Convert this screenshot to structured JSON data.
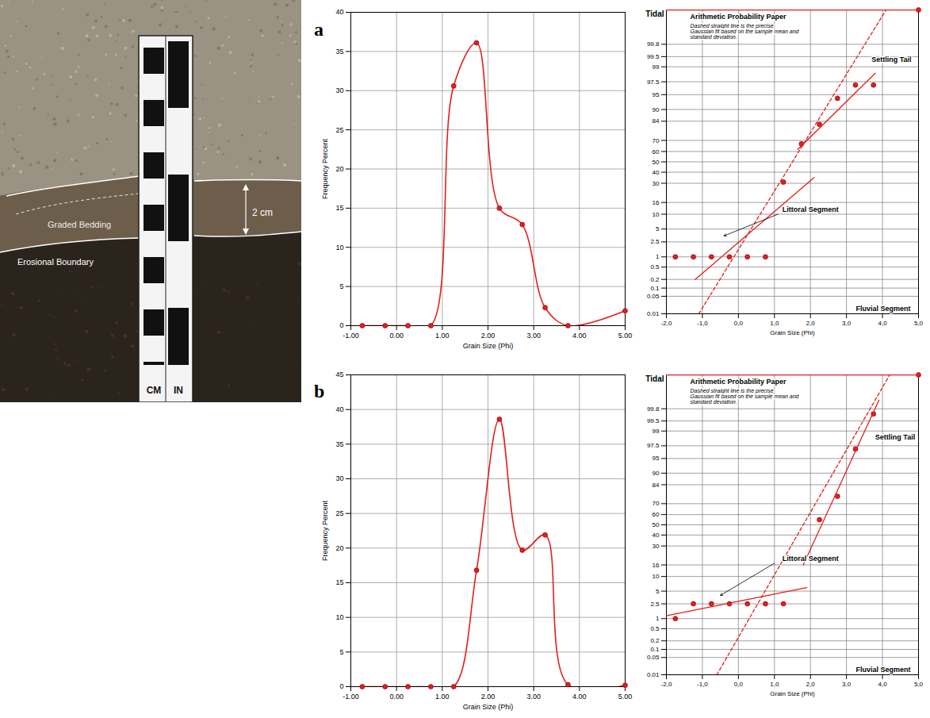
{
  "photo": {
    "scale_labels": [
      "CM",
      "IN"
    ],
    "annotations": {
      "graded": "Graded Bedding",
      "erosional": "Erosional Boundary",
      "thickness": "2 cm"
    }
  },
  "panel_labels": [
    "a",
    "b"
  ],
  "chart_data": [
    {
      "type": "line",
      "xlabel": "Grain Size (Phi)",
      "ylabel": "Frequency Percent",
      "x": [
        -0.75,
        -0.25,
        0.25,
        0.75,
        1.25,
        1.75,
        2.25,
        2.75,
        3.25,
        3.75,
        5.0
      ],
      "values": [
        0,
        0,
        0,
        0,
        30.6,
        36.1,
        15.0,
        12.9,
        2.3,
        0,
        1.9
      ],
      "color": "#e41e1e",
      "marker": "circle",
      "xlim": [
        -1,
        5
      ],
      "xticks": [
        {
          "value": -1,
          "label": "-1.00"
        },
        {
          "value": 0,
          "label": "0.00"
        },
        {
          "value": 1,
          "label": "1.00"
        },
        {
          "value": 2,
          "label": "2.00"
        },
        {
          "value": 3,
          "label": "3.00"
        },
        {
          "value": 4,
          "label": "4.00"
        },
        {
          "value": 5,
          "label": "5.00"
        }
      ],
      "ylim": [
        0,
        40
      ],
      "yticks": [
        0,
        5,
        10,
        15,
        20,
        25,
        30,
        35,
        40
      ],
      "grid": true
    },
    {
      "type": "probability",
      "xlabel": "Grain Size (Phi)",
      "annotations": {
        "paper_title": "Arithmetic Probability Paper",
        "note": "Dashed straight line is the precise Gaussian fit based on the sample mean and standard deviation.",
        "settling": "Settling Tail",
        "littoral": "Littoral Segment",
        "fluvial": "Fluvial Segment",
        "tidal": "Tidal"
      },
      "xlim": [
        -2,
        5
      ],
      "xticks": [
        {
          "value": -2,
          "label": "-2,0"
        },
        {
          "value": -1,
          "label": "-1,0"
        },
        {
          "value": 0,
          "label": "0,0"
        },
        {
          "value": 1,
          "label": "1,0"
        },
        {
          "value": 2,
          "label": "2,0"
        },
        {
          "value": 3,
          "label": "3,0"
        },
        {
          "value": 4,
          "label": "4,0"
        },
        {
          "value": 5,
          "label": "5,0"
        }
      ],
      "ylim": [
        0.01,
        99.99
      ],
      "yticks": [
        0.01,
        0.05,
        0.1,
        0.2,
        0.5,
        1,
        2.5,
        5,
        10,
        16,
        30,
        40,
        50,
        60,
        70,
        84,
        90,
        95,
        97.5,
        99,
        99.5,
        99.8
      ],
      "grid": true,
      "series": [
        {
          "type": "scatter",
          "marker": "circle",
          "color": "#e41e1e",
          "x": [
            -1.75,
            -1.25,
            -0.75,
            -0.25,
            0.25,
            0.75,
            1.25,
            1.75,
            2.25,
            2.75,
            3.25,
            3.75,
            5.0
          ],
          "values": [
            1,
            1,
            1,
            1,
            1,
            1,
            31,
            67,
            82,
            94,
            97,
            97,
            99.99
          ]
        },
        {
          "type": "line",
          "line_style": "solid",
          "color": "#e41e1e",
          "x": [
            -1.2,
            2.1
          ],
          "values": [
            0.2,
            35
          ]
        },
        {
          "type": "line",
          "line_style": "solid",
          "color": "#e41e1e",
          "x": [
            1.65,
            3.8
          ],
          "values": [
            62,
            98.5
          ]
        },
        {
          "type": "line",
          "line_style": "dashed",
          "color": "#e41e1e",
          "x": [
            -1.1,
            4.1
          ],
          "values": [
            0.01,
            99.99
          ]
        },
        {
          "type": "line",
          "line_style": "solid",
          "color": "#e41e1e",
          "x": [
            -2,
            5
          ],
          "values": [
            99.99,
            99.99
          ]
        }
      ]
    },
    {
      "type": "line",
      "xlabel": "Grain Size (Phi)",
      "ylabel": "Frequency Percent",
      "x": [
        -0.75,
        -0.25,
        0.25,
        0.75,
        1.25,
        1.75,
        2.25,
        2.75,
        3.25,
        3.75,
        5.0
      ],
      "values": [
        0,
        0,
        0,
        0,
        0,
        16.8,
        38.6,
        19.7,
        21.9,
        0.3,
        0.2
      ],
      "color": "#e41e1e",
      "marker": "circle",
      "xlim": [
        -1,
        5
      ],
      "xticks": [
        {
          "value": -1,
          "label": "-1.00"
        },
        {
          "value": 0,
          "label": "0.00"
        },
        {
          "value": 1,
          "label": "1.00"
        },
        {
          "value": 2,
          "label": "2.00"
        },
        {
          "value": 3,
          "label": "3.00"
        },
        {
          "value": 4,
          "label": "4.00"
        },
        {
          "value": 5,
          "label": "5.00"
        }
      ],
      "ylim": [
        0,
        45
      ],
      "yticks": [
        0,
        5,
        10,
        15,
        20,
        25,
        30,
        35,
        40,
        45
      ],
      "grid": true
    },
    {
      "type": "probability",
      "xlabel": "Grain Size (Phi)",
      "annotations": {
        "paper_title": "Arithmetic Probability Paper",
        "note": "Dashed straight line is the precise Gaussian fit based on the sample mean and standard deviation.",
        "settling": "Settling Tail",
        "littoral": "Littoral Segment",
        "fluvial": "Fluvial Segment",
        "tidal": "Tidal"
      },
      "xlim": [
        -2,
        5
      ],
      "xticks": [
        {
          "value": -2,
          "label": "-2,0"
        },
        {
          "value": -1,
          "label": "-1,0"
        },
        {
          "value": 0,
          "label": "0,0"
        },
        {
          "value": 1,
          "label": "1,0"
        },
        {
          "value": 2,
          "label": "2,0"
        },
        {
          "value": 3,
          "label": "3,0"
        },
        {
          "value": 4,
          "label": "4,0"
        },
        {
          "value": 5,
          "label": "5,0"
        }
      ],
      "ylim": [
        0.01,
        99.99
      ],
      "yticks": [
        0.01,
        0.05,
        0.1,
        0.2,
        0.5,
        1,
        2.5,
        5,
        10,
        16,
        30,
        40,
        50,
        60,
        70,
        84,
        90,
        95,
        97.5,
        99,
        99.5,
        99.8
      ],
      "grid": true,
      "series": [
        {
          "type": "scatter",
          "marker": "circle",
          "color": "#e41e1e",
          "x": [
            -1.75,
            -1.25,
            -0.75,
            -0.25,
            0.25,
            0.75,
            1.25,
            2.25,
            2.75,
            3.25,
            3.75,
            5.0
          ],
          "values": [
            1,
            2.5,
            2.5,
            2.5,
            2.5,
            2.5,
            2.5,
            55,
            76,
            97,
            99.7,
            99.99
          ]
        },
        {
          "type": "line",
          "line_style": "solid",
          "color": "#e41e1e",
          "x": [
            -2,
            1.9
          ],
          "values": [
            1.2,
            6
          ]
        },
        {
          "type": "line",
          "line_style": "solid",
          "color": "#e41e1e",
          "x": [
            1.8,
            3.9
          ],
          "values": [
            16,
            99.9
          ]
        },
        {
          "type": "line",
          "line_style": "dashed",
          "color": "#e41e1e",
          "x": [
            -0.6,
            4.2
          ],
          "values": [
            0.01,
            99.99
          ]
        },
        {
          "type": "line",
          "line_style": "solid",
          "color": "#e41e1e",
          "x": [
            -2,
            5
          ],
          "values": [
            99.99,
            99.99
          ]
        }
      ]
    }
  ]
}
